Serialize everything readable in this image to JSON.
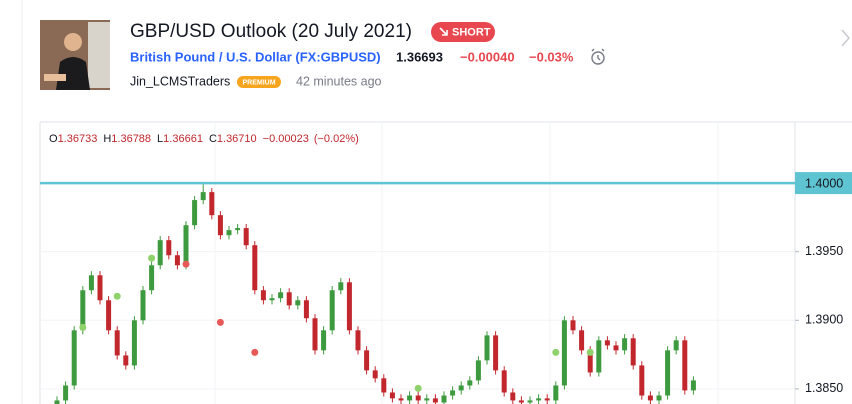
{
  "header": {
    "title": "GBP/USD Outlook (20 July 2021)",
    "badge": "SHORT",
    "symbol": "British Pound / U.S. Dollar (FX:GBPUSD)",
    "price": "1.36693",
    "change": "−0.00040",
    "change_pct": "−0.03%",
    "author": "Jin_LCMSTraders",
    "author_badge": "PREMIUM",
    "time": "42 minutes ago"
  },
  "legend": {
    "items": [
      {
        "key": "O",
        "value": "1.36733"
      },
      {
        "key": "H",
        "value": "1.36788"
      },
      {
        "key": "L",
        "value": "1.36661"
      },
      {
        "key": "C",
        "value": "1.36710"
      }
    ],
    "change": "−0.00023",
    "change_pct": "(−0.02%)"
  },
  "chart_data": {
    "type": "candlestick",
    "up_color": "#3e9a3e",
    "down_color": "#c1272d",
    "open": [
      1.383,
      1.38416,
      1.38525,
      1.38927,
      1.39219,
      1.39328,
      1.39146,
      1.38927,
      1.38744,
      1.38671,
      1.39,
      1.39219,
      1.39401,
      1.39584,
      1.39474,
      1.39401,
      1.39693,
      1.39876,
      1.39934,
      1.39766,
      1.3962,
      1.39657,
      1.39672,
      1.39547,
      1.39219,
      1.39146,
      1.39161,
      1.39204,
      1.39109,
      1.39146,
      1.39015,
      1.38781,
      1.38927,
      1.39219,
      1.39277,
      1.38927,
      1.38781,
      1.38635,
      1.38577,
      1.38474,
      1.38431,
      1.38416,
      1.38452,
      1.38416,
      1.38431,
      1.38401,
      1.38452,
      1.38489,
      1.38525,
      1.38562,
      1.38708,
      1.3889,
      1.38635,
      1.38474,
      1.38416,
      1.38401,
      1.38416,
      1.38431,
      1.38416,
      1.38525,
      1.39,
      1.38927,
      1.38781,
      1.3862,
      1.38854,
      1.38817,
      1.38781,
      1.38869,
      1.38671,
      1.38452,
      1.38416,
      1.38452,
      1.38781,
      1.38854,
      1.38489
    ],
    "high": [
      1.38446,
      1.38555,
      1.38957,
      1.39249,
      1.39358,
      1.39358,
      1.39176,
      1.38957,
      1.38774,
      1.3903,
      1.39249,
      1.39431,
      1.39614,
      1.39614,
      1.39504,
      1.39723,
      1.39906,
      1.3999,
      1.39964,
      1.39796,
      1.39687,
      1.39702,
      1.39702,
      1.39577,
      1.39249,
      1.39191,
      1.39234,
      1.39234,
      1.39176,
      1.39176,
      1.39045,
      1.38957,
      1.39249,
      1.39307,
      1.39307,
      1.38957,
      1.38811,
      1.38665,
      1.38607,
      1.38504,
      1.38461,
      1.38482,
      1.38482,
      1.38461,
      1.38461,
      1.38482,
      1.38519,
      1.38555,
      1.38592,
      1.38738,
      1.3892,
      1.3892,
      1.38665,
      1.38504,
      1.38446,
      1.38446,
      1.38461,
      1.38461,
      1.38555,
      1.3903,
      1.3903,
      1.38957,
      1.38811,
      1.38884,
      1.38884,
      1.38847,
      1.38899,
      1.38899,
      1.38701,
      1.38482,
      1.38482,
      1.38811,
      1.38884,
      1.38884,
      1.38592
    ],
    "low": [
      1.3827,
      1.38386,
      1.38495,
      1.38897,
      1.39189,
      1.39116,
      1.38897,
      1.38714,
      1.38641,
      1.38641,
      1.3897,
      1.39189,
      1.39371,
      1.39444,
      1.39371,
      1.39371,
      1.39663,
      1.39846,
      1.39736,
      1.3959,
      1.3959,
      1.39627,
      1.39517,
      1.39189,
      1.39116,
      1.39116,
      1.39131,
      1.39079,
      1.39079,
      1.38985,
      1.38751,
      1.38751,
      1.38897,
      1.39189,
      1.38897,
      1.38751,
      1.38605,
      1.38547,
      1.38444,
      1.38401,
      1.38386,
      1.38386,
      1.38386,
      1.38386,
      1.38371,
      1.38371,
      1.38422,
      1.38459,
      1.38495,
      1.38532,
      1.38678,
      1.38605,
      1.38444,
      1.38386,
      1.38371,
      1.38371,
      1.38386,
      1.38386,
      1.38386,
      1.38495,
      1.38897,
      1.38751,
      1.3859,
      1.3859,
      1.38787,
      1.38751,
      1.38751,
      1.38641,
      1.38422,
      1.38386,
      1.38386,
      1.38422,
      1.38751,
      1.38459,
      1.38459
    ],
    "close": [
      1.38416,
      1.38525,
      1.38927,
      1.39219,
      1.39328,
      1.39146,
      1.38927,
      1.38744,
      1.38671,
      1.39,
      1.39219,
      1.39401,
      1.39584,
      1.39474,
      1.39401,
      1.39693,
      1.39876,
      1.39934,
      1.39766,
      1.3962,
      1.39657,
      1.39672,
      1.39547,
      1.39219,
      1.39146,
      1.39161,
      1.39204,
      1.39109,
      1.39146,
      1.39015,
      1.38781,
      1.38927,
      1.39219,
      1.39277,
      1.38927,
      1.38781,
      1.38635,
      1.38577,
      1.38474,
      1.38431,
      1.38416,
      1.38452,
      1.38416,
      1.38431,
      1.38401,
      1.38452,
      1.38489,
      1.38525,
      1.38562,
      1.38708,
      1.3889,
      1.38635,
      1.38474,
      1.38416,
      1.38401,
      1.38416,
      1.38431,
      1.38416,
      1.38525,
      1.39,
      1.38927,
      1.38781,
      1.3862,
      1.38854,
      1.38817,
      1.38781,
      1.38869,
      1.38671,
      1.38452,
      1.38416,
      1.38452,
      1.38781,
      1.38854,
      1.38489,
      1.38562
    ],
    "signals": [
      {
        "color": "#8fd16a",
        "x": [
          3,
          7,
          11,
          42,
          58,
          62
        ],
        "values": [
          1.38949,
          1.39175,
          1.39453,
          1.38504,
          1.38766,
          1.38766
        ]
      },
      {
        "color": "#e85a5a",
        "x": [
          15,
          19,
          23
        ],
        "values": [
          1.39409,
          1.38985,
          1.38766
        ]
      }
    ],
    "hline": {
      "value": 1.4,
      "label": "1.4000",
      "color": "#5fc4d2"
    },
    "ylim": [
      1.3839,
      1.40445
    ],
    "yticks": [
      {
        "value": 1.395,
        "label": "1.3950"
      },
      {
        "value": 1.39,
        "label": "1.3900"
      },
      {
        "value": 1.385,
        "label": "1.3850"
      }
    ],
    "grid": true
  }
}
